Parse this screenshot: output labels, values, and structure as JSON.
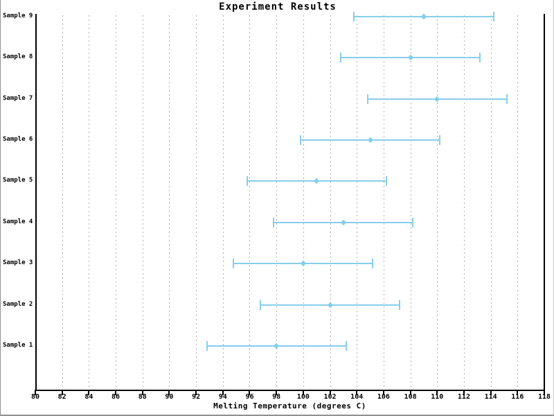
{
  "window": {
    "border_color": "#909090"
  },
  "chart_data": {
    "type": "scatter",
    "subtype": "horizontal-error-bars",
    "title": "Experiment Results",
    "xlabel": "Melting Temperature (degrees C)",
    "ylabel": "",
    "categories": [
      "Sample 1",
      "Sample 2",
      "Sample 3",
      "Sample 4",
      "Sample 5",
      "Sample 6",
      "Sample 7",
      "Sample 8",
      "Sample 9"
    ],
    "values": [
      98,
      102,
      100,
      103,
      101,
      105,
      110,
      108,
      109
    ],
    "xerr": [
      5.2,
      5.2,
      5.2,
      5.2,
      5.2,
      5.2,
      5.2,
      5.2,
      5.2
    ],
    "xlim": [
      80,
      118
    ],
    "xticks": [
      80,
      82,
      84,
      86,
      88,
      90,
      92,
      94,
      96,
      98,
      100,
      102,
      104,
      106,
      108,
      110,
      112,
      114,
      116,
      118
    ],
    "category_order": "Sample 1 at bottom, Sample 9 at top",
    "grid": "vertical dotted gridlines at every x tick",
    "legend": "none",
    "marker": "diamond",
    "colors": {
      "series": "#87CEEB",
      "grid": "#b0b0b0",
      "axis": "#000000",
      "text": "#000000",
      "background": "#ffffff"
    }
  }
}
